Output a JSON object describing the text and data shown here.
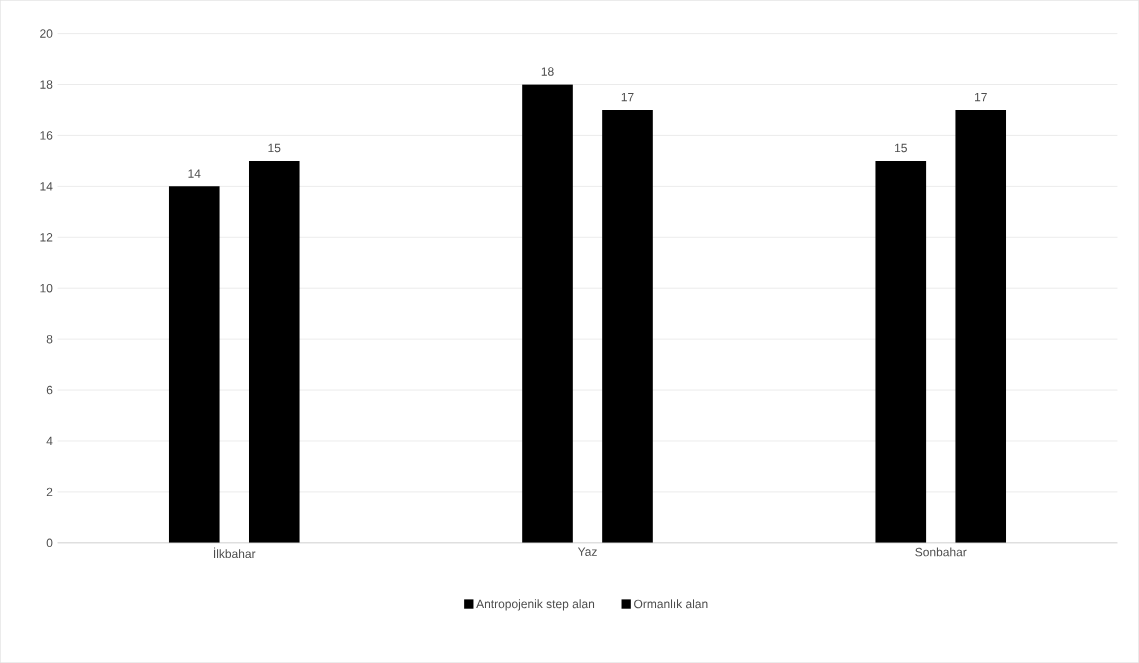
{
  "chart_data": {
    "type": "bar",
    "categories": [
      "İlkbahar",
      "Yaz",
      "Sonbahar"
    ],
    "series": [
      {
        "name": "Antropojenik step alan",
        "color": "#000000",
        "values": [
          14,
          18,
          15
        ]
      },
      {
        "name": "Ormanlık alan",
        "color": "#000000",
        "values": [
          15,
          17,
          17
        ]
      }
    ],
    "ylim": [
      0,
      20
    ],
    "yticks": [
      0,
      2,
      4,
      6,
      8,
      10,
      12,
      14,
      16,
      18,
      20
    ],
    "grid": "y",
    "legend": "bottom",
    "data_labels": true
  }
}
